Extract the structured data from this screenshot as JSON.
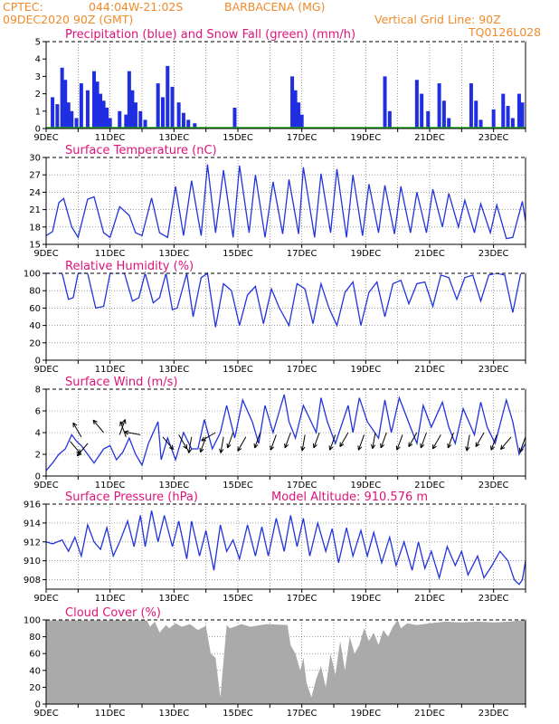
{
  "header": {
    "agency": "CPTEC:",
    "coords": "044:04W-21:02S",
    "station": "BARBACENA (MG)",
    "run": "09DEC2020 90Z (GMT)",
    "grid_note": "Vertical Grid Line: 90Z",
    "code": "TQ0126L028"
  },
  "colors": {
    "header": "#f08b2a",
    "title": "#e0137a",
    "line": "#2233dd",
    "precip": "#1f2ee0",
    "snow": "#22aa22",
    "cloud": "#aaaaaa"
  },
  "x_labels": [
    "9DEC",
    "11DEC",
    "13DEC",
    "15DEC",
    "17DEC",
    "19DEC",
    "21DEC",
    "23DEC"
  ],
  "chart_data": [
    {
      "id": "precip",
      "type": "bar",
      "title": "Precipitation (blue) and Snow Fall (green) (mm/h)",
      "ylim": [
        0,
        5
      ],
      "yticks": [
        0,
        1,
        2,
        3,
        4,
        5
      ],
      "x_range_days": [
        9,
        24
      ],
      "series": [
        {
          "name": "Precipitation",
          "x": [
            9.2,
            9.35,
            9.5,
            9.6,
            9.7,
            9.8,
            9.95,
            10.1,
            10.3,
            10.5,
            10.6,
            10.7,
            10.8,
            10.9,
            11.0,
            11.3,
            11.5,
            11.6,
            11.7,
            11.8,
            11.95,
            12.1,
            12.5,
            12.65,
            12.8,
            12.95,
            13.15,
            13.3,
            13.45,
            13.65,
            14.9,
            16.7,
            16.8,
            16.9,
            17.0,
            19.6,
            19.75,
            20.6,
            20.75,
            20.95,
            21.3,
            21.45,
            21.6,
            22.3,
            22.45,
            22.6,
            23.0,
            23.3,
            23.45,
            23.6,
            23.8,
            23.9
          ],
          "values": [
            1.8,
            1.4,
            3.5,
            2.8,
            1.5,
            1.0,
            0.6,
            2.6,
            2.2,
            3.3,
            2.7,
            2.0,
            1.6,
            1.2,
            0.6,
            1.0,
            0.8,
            3.3,
            2.2,
            1.5,
            1.0,
            0.5,
            2.6,
            1.8,
            3.6,
            2.4,
            1.5,
            0.9,
            0.5,
            0.3,
            1.2,
            3.0,
            2.2,
            1.5,
            0.8,
            3.0,
            1.0,
            2.8,
            2.0,
            1.0,
            2.6,
            1.6,
            0.6,
            2.6,
            1.6,
            0.5,
            1.1,
            2.0,
            1.3,
            0.6,
            2.0,
            1.5
          ]
        },
        {
          "name": "Snow Fall",
          "x": [
            9,
            24
          ],
          "values": [
            0,
            0
          ]
        }
      ]
    },
    {
      "id": "temp",
      "type": "line",
      "title": "Surface Temperature (nC)",
      "ylim": [
        15,
        30
      ],
      "yticks": [
        15,
        18,
        21,
        24,
        27,
        30
      ],
      "x_range_days": [
        9,
        24
      ],
      "x": [
        9.0,
        9.2,
        9.4,
        9.55,
        9.8,
        10.0,
        10.3,
        10.5,
        10.8,
        11.0,
        11.3,
        11.6,
        11.8,
        12.0,
        12.3,
        12.55,
        12.8,
        13.05,
        13.3,
        13.55,
        13.85,
        14.05,
        14.3,
        14.55,
        14.85,
        15.05,
        15.35,
        15.55,
        15.85,
        16.1,
        16.4,
        16.6,
        16.9,
        17.05,
        17.4,
        17.6,
        17.9,
        18.1,
        18.4,
        18.6,
        18.9,
        19.1,
        19.4,
        19.6,
        19.9,
        20.1,
        20.4,
        20.6,
        20.9,
        21.1,
        21.4,
        21.6,
        21.9,
        22.1,
        22.4,
        22.6,
        22.9,
        23.1,
        23.4,
        23.6,
        23.9,
        24.0
      ],
      "values": [
        16.5,
        17.2,
        22.2,
        22.9,
        18.0,
        16.2,
        22.8,
        23.2,
        17.0,
        16.2,
        21.5,
        20.0,
        17.0,
        16.5,
        23.0,
        17.0,
        16.2,
        25.0,
        16.5,
        26.0,
        16.5,
        28.8,
        17.0,
        27.8,
        16.2,
        28.6,
        17.0,
        27.0,
        16.2,
        25.8,
        16.8,
        26.2,
        16.8,
        28.3,
        16.2,
        27.2,
        17.0,
        28.0,
        16.2,
        27.0,
        16.5,
        25.4,
        17.0,
        25.2,
        16.8,
        25.0,
        17.0,
        24.0,
        17.0,
        24.5,
        18.0,
        23.8,
        18.0,
        22.6,
        17.0,
        22.0,
        17.0,
        21.8,
        16.0,
        16.2,
        22.4,
        19.0
      ]
    },
    {
      "id": "rh",
      "type": "line",
      "title": "Relative Humidity (%)",
      "ylim": [
        0,
        100
      ],
      "yticks": [
        0,
        20,
        40,
        60,
        80,
        100
      ],
      "x_range_days": [
        9,
        24
      ],
      "x": [
        9.0,
        9.3,
        9.5,
        9.7,
        9.85,
        10.0,
        10.3,
        10.55,
        10.8,
        11.0,
        11.2,
        11.45,
        11.7,
        11.9,
        12.1,
        12.35,
        12.55,
        12.75,
        12.95,
        13.1,
        13.4,
        13.6,
        13.85,
        14.05,
        14.3,
        14.55,
        14.8,
        15.05,
        15.3,
        15.55,
        15.8,
        16.05,
        16.3,
        16.6,
        16.85,
        17.1,
        17.35,
        17.6,
        17.85,
        18.1,
        18.35,
        18.6,
        18.85,
        19.1,
        19.35,
        19.6,
        19.85,
        20.1,
        20.35,
        20.6,
        20.85,
        21.1,
        21.35,
        21.6,
        21.85,
        22.1,
        22.35,
        22.6,
        22.85,
        23.1,
        23.35,
        23.6,
        23.85,
        24.0
      ],
      "values": [
        100,
        100,
        100,
        70,
        72,
        100,
        100,
        60,
        62,
        100,
        100,
        100,
        68,
        72,
        100,
        66,
        72,
        100,
        58,
        60,
        100,
        50,
        95,
        100,
        38,
        88,
        80,
        40,
        75,
        85,
        42,
        82,
        60,
        40,
        88,
        82,
        42,
        88,
        60,
        40,
        78,
        90,
        40,
        78,
        90,
        50,
        88,
        92,
        65,
        88,
        90,
        62,
        98,
        95,
        70,
        95,
        98,
        68,
        98,
        100,
        98,
        55,
        100,
        100
      ]
    },
    {
      "id": "wind",
      "type": "line",
      "title": "Surface Wind (m/s)",
      "ylim": [
        0,
        8
      ],
      "yticks": [
        0,
        2,
        4,
        6,
        8
      ],
      "x_range_days": [
        9,
        24
      ],
      "x": [
        9.0,
        9.2,
        9.4,
        9.6,
        9.8,
        9.95,
        10.1,
        10.3,
        10.5,
        10.8,
        11.0,
        11.2,
        11.4,
        11.6,
        11.8,
        12.0,
        12.2,
        12.5,
        12.6,
        12.8,
        13.05,
        13.3,
        13.55,
        13.75,
        13.95,
        14.2,
        14.45,
        14.65,
        14.9,
        15.15,
        15.45,
        15.65,
        15.85,
        16.1,
        16.45,
        16.6,
        16.8,
        17.05,
        17.45,
        17.6,
        17.8,
        18.05,
        18.45,
        18.6,
        18.8,
        19.05,
        19.4,
        19.6,
        19.8,
        20.05,
        20.4,
        20.6,
        20.8,
        21.05,
        21.4,
        21.6,
        21.8,
        22.05,
        22.4,
        22.6,
        22.8,
        23.05,
        23.4,
        23.6,
        23.8,
        24.0
      ],
      "values": [
        0.5,
        1.2,
        2.0,
        2.5,
        3.8,
        3.2,
        2.8,
        2.0,
        1.2,
        2.5,
        2.8,
        1.5,
        2.2,
        3.5,
        2.0,
        1.0,
        3.0,
        5.0,
        1.5,
        3.5,
        1.5,
        4.0,
        2.5,
        2.5,
        5.2,
        2.5,
        4.0,
        6.5,
        3.5,
        7.0,
        5.0,
        3.0,
        6.5,
        4.0,
        7.5,
        5.0,
        3.5,
        6.5,
        4.0,
        7.2,
        5.0,
        3.0,
        6.5,
        4.0,
        7.2,
        5.0,
        3.5,
        7.0,
        4.0,
        7.2,
        4.5,
        3.0,
        6.5,
        4.5,
        6.8,
        4.5,
        3.0,
        6.2,
        3.8,
        6.8,
        4.5,
        3.0,
        7.0,
        5.0,
        2.0,
        3.0
      ],
      "arrows_x": [
        9.75,
        10.1,
        10.3,
        10.8,
        11.3,
        11.5,
        11.95,
        12.65,
        13.15,
        13.55,
        14.0,
        14.3,
        14.55,
        14.85,
        15.25,
        15.7,
        16.2,
        16.65,
        17.1,
        17.55,
        18.05,
        18.45,
        18.95,
        19.3,
        19.65,
        20.15,
        20.6,
        20.9,
        21.35,
        21.75,
        22.25,
        22.7,
        23.1,
        23.55,
        24.0
      ],
      "arrows_y": [
        3.2,
        3.6,
        3.0,
        4.0,
        3.8,
        3.6,
        3.8,
        3.6,
        3.8,
        3.6,
        3.6,
        4.0,
        3.6,
        4.0,
        3.6,
        4.0,
        3.8,
        4.0,
        3.8,
        4.0,
        3.8,
        4.0,
        3.8,
        4.0,
        4.0,
        3.8,
        4.0,
        4.0,
        3.8,
        4.0,
        3.8,
        4.0,
        3.8,
        3.6,
        3.6
      ],
      "arrows_dir": [
        140,
        330,
        220,
        320,
        20,
        340,
        280,
        140,
        150,
        190,
        200,
        240,
        190,
        200,
        210,
        200,
        200,
        200,
        190,
        200,
        200,
        210,
        200,
        190,
        200,
        200,
        210,
        200,
        210,
        200,
        190,
        210,
        200,
        220,
        200
      ]
    },
    {
      "id": "pres",
      "type": "line",
      "title": "Surface Pressure (hPa)",
      "extra": "Model Altitude: 910.576 m",
      "ylim": [
        907,
        916
      ],
      "yticks": [
        908,
        910,
        912,
        914,
        916
      ],
      "x_range_days": [
        9,
        24
      ],
      "x": [
        9.0,
        9.2,
        9.5,
        9.7,
        9.9,
        10.1,
        10.3,
        10.5,
        10.7,
        10.9,
        11.1,
        11.3,
        11.55,
        11.75,
        11.95,
        12.1,
        12.3,
        12.5,
        12.7,
        12.95,
        13.15,
        13.4,
        13.55,
        13.8,
        14.0,
        14.25,
        14.45,
        14.65,
        14.85,
        15.05,
        15.3,
        15.55,
        15.75,
        15.95,
        16.2,
        16.45,
        16.65,
        16.85,
        17.05,
        17.25,
        17.5,
        17.75,
        17.95,
        18.15,
        18.4,
        18.6,
        18.85,
        19.05,
        19.25,
        19.5,
        19.75,
        19.95,
        20.2,
        20.45,
        20.65,
        20.85,
        21.05,
        21.3,
        21.55,
        21.8,
        22.0,
        22.2,
        22.5,
        22.7,
        22.95,
        23.2,
        23.45,
        23.65,
        23.8,
        23.9,
        24.0
      ],
      "values": [
        912,
        911.8,
        912.2,
        911,
        912.5,
        910.5,
        913.8,
        912,
        911.2,
        913.5,
        910.5,
        912,
        914.2,
        911.5,
        914.8,
        911.5,
        915.3,
        912,
        914.8,
        911.5,
        914.2,
        910.2,
        914.2,
        910.5,
        913.2,
        909,
        913.8,
        911,
        912.2,
        910.2,
        913.8,
        910.5,
        913.6,
        910.5,
        914.5,
        911,
        914.8,
        911.5,
        914.5,
        910.5,
        914,
        911,
        913.4,
        909.8,
        913.5,
        910.5,
        913.2,
        910.5,
        913,
        909.8,
        912.5,
        909.5,
        912,
        909,
        912,
        909.2,
        911,
        908.2,
        911.5,
        909.5,
        911,
        908.5,
        910.5,
        908.2,
        909.5,
        911,
        910,
        908,
        907.5,
        908,
        910
      ]
    },
    {
      "id": "cloud",
      "type": "area",
      "title": "Cloud Cover (%)",
      "ylim": [
        0,
        100
      ],
      "yticks": [
        0,
        20,
        40,
        60,
        80,
        100
      ],
      "x_range_days": [
        9,
        24
      ],
      "x": [
        9.0,
        12.15,
        12.25,
        12.4,
        12.55,
        12.75,
        12.85,
        13.05,
        13.25,
        13.5,
        13.75,
        14.0,
        14.15,
        14.3,
        14.45,
        14.65,
        14.75,
        14.9,
        15.1,
        15.4,
        15.9,
        16.55,
        16.65,
        16.8,
        16.95,
        17.05,
        17.15,
        17.3,
        17.45,
        17.6,
        17.75,
        17.9,
        18.05,
        18.2,
        18.35,
        18.5,
        18.65,
        18.8,
        18.95,
        19.1,
        19.25,
        19.4,
        19.55,
        19.7,
        19.85,
        20.0,
        20.1,
        20.3,
        20.6,
        21.0,
        21.5,
        22.0,
        22.5,
        23.0,
        23.5,
        24.0
      ],
      "values": [
        100,
        100,
        92,
        98,
        85,
        94,
        90,
        96,
        92,
        95,
        88,
        93,
        60,
        55,
        8,
        94,
        90,
        92,
        95,
        92,
        95,
        94,
        70,
        60,
        40,
        55,
        25,
        8,
        30,
        45,
        20,
        60,
        35,
        75,
        40,
        80,
        60,
        70,
        90,
        75,
        85,
        70,
        88,
        80,
        92,
        100,
        90,
        96,
        94,
        96,
        98,
        97,
        98,
        97,
        98,
        100
      ]
    }
  ]
}
